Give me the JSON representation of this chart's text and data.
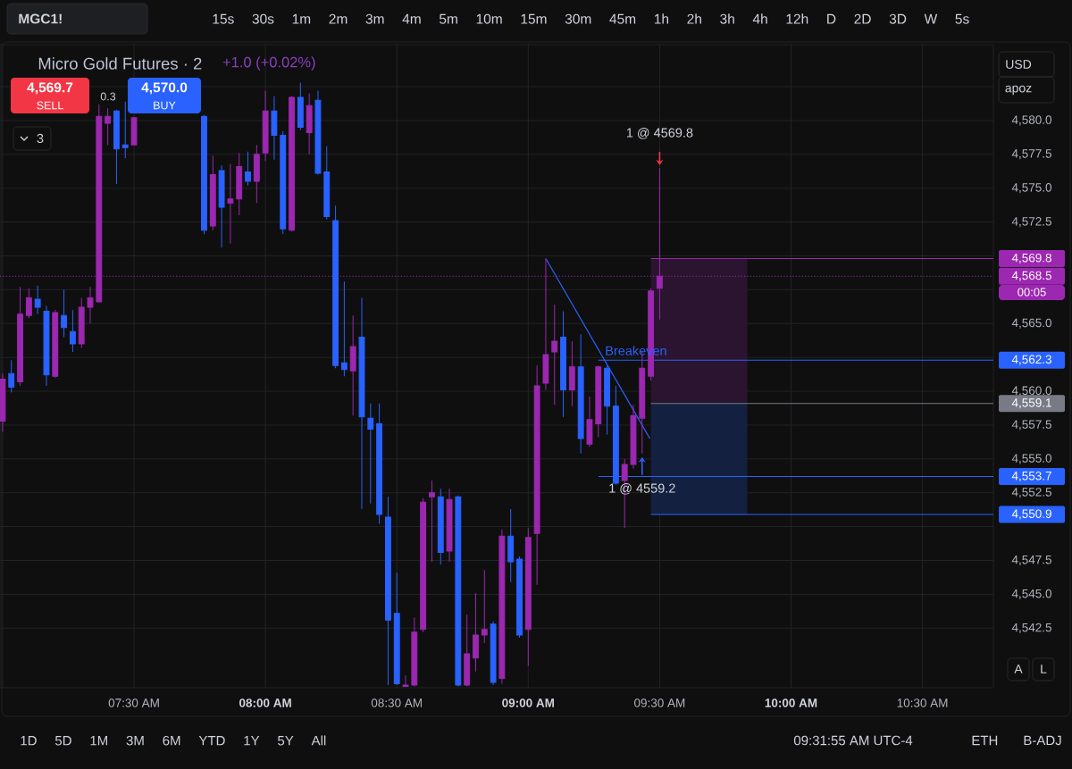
{
  "chart_data": {
    "type": "candlestick",
    "title": "Micro Gold Futures · 2",
    "subtitle": "+1.0 (+0.02%)",
    "x": [
      7,
      7.0333,
      7.0667,
      7.1,
      7.1333,
      7.1667,
      7.2,
      7.2333,
      7.2667,
      7.3,
      7.3333,
      7.3667,
      7.4,
      7.4333,
      7.4667,
      7.5,
      7.7667,
      7.8,
      7.8333,
      7.8667,
      7.9,
      7.9333,
      7.9667,
      8,
      8.0333,
      8.0667,
      8.1,
      8.1333,
      8.1667,
      8.2,
      8.2333,
      8.2667,
      8.3,
      8.3333,
      8.3667,
      8.4,
      8.4333,
      8.4667,
      8.5,
      8.5333,
      8.5667,
      8.6,
      8.6333,
      8.6667,
      8.7,
      8.7333,
      8.7667,
      8.8,
      8.8333,
      8.8667,
      8.9,
      8.9333,
      8.9667,
      9,
      9.0333,
      9.0667,
      9.1,
      9.1333,
      9.1667,
      9.2,
      9.2333,
      9.2667,
      9.3,
      9.3333,
      9.3667,
      9.4,
      9.4333,
      9.4667,
      9.5
    ],
    "ohlc": [
      [
        4557.8,
        4561.3,
        4557.0,
        4560.9
      ],
      [
        4561.3,
        4562.3,
        4559.9,
        4560.3
      ],
      [
        4560.7,
        4567.7,
        4560.4,
        4565.7
      ],
      [
        4565.6,
        4567.6,
        4565.4,
        4566.9
      ],
      [
        4566.8,
        4567.8,
        4565.7,
        4566.2
      ],
      [
        4565.9,
        4566.3,
        4560.4,
        4561.2
      ],
      [
        4561.1,
        4566.0,
        4561.0,
        4565.8
      ],
      [
        4565.6,
        4567.5,
        4564.0,
        4564.7
      ],
      [
        4564.4,
        4566.0,
        4562.9,
        4563.5
      ],
      [
        4563.5,
        4566.9,
        4563.2,
        4566.2
      ],
      [
        4566.2,
        4567.7,
        4565.0,
        4566.9
      ],
      [
        4566.6,
        4581.2,
        4566.6,
        4580.3
      ],
      [
        4579.8,
        4580.9,
        4578.2,
        4580.3
      ],
      [
        4580.7,
        4580.8,
        4575.3,
        4577.9
      ],
      [
        4578.2,
        4581.4,
        4577.2,
        4578.0
      ],
      [
        4578.2,
        4580.2,
        4578.2,
        4580.2
      ],
      [
        4580.3,
        4580.4,
        4571.6,
        4571.9
      ],
      [
        4572.2,
        4577.4,
        4571.9,
        4576.0
      ],
      [
        4576.3,
        4576.7,
        4570.6,
        4573.6
      ],
      [
        4573.9,
        4576.8,
        4570.9,
        4574.2
      ],
      [
        4574.2,
        4577.6,
        4573.0,
        4576.6
      ],
      [
        4576.2,
        4577.7,
        4575.2,
        4575.5
      ],
      [
        4575.5,
        4578.2,
        4573.9,
        4577.5
      ],
      [
        4577.6,
        4582.2,
        4577.0,
        4580.7
      ],
      [
        4580.7,
        4581.8,
        4577.1,
        4578.9
      ],
      [
        4578.9,
        4579.2,
        4571.6,
        4572.0
      ],
      [
        4571.9,
        4581.8,
        4571.8,
        4581.7
      ],
      [
        4581.7,
        4582.8,
        4579.3,
        4579.5
      ],
      [
        4579.1,
        4582.0,
        4577.5,
        4581.1
      ],
      [
        4581.5,
        4582.2,
        4576.0,
        4576.1
      ],
      [
        4576.2,
        4578.1,
        4572.7,
        4572.9
      ],
      [
        4572.6,
        4573.7,
        4561.7,
        4561.9
      ],
      [
        4562.1,
        4568.1,
        4561.1,
        4561.6
      ],
      [
        4561.5,
        4565.6,
        4558.2,
        4563.3
      ],
      [
        4564.0,
        4566.9,
        4551.3,
        4558.1
      ],
      [
        4558.0,
        4559.1,
        4551.7,
        4557.2
      ],
      [
        4557.6,
        4559.1,
        4550.2,
        4550.9
      ],
      [
        4550.7,
        4552.2,
        4538.3,
        4543.1
      ],
      [
        4543.6,
        4546.6,
        4538.3,
        4538.4
      ],
      [
        4538.2,
        4539.0,
        4538.2,
        4538.3
      ],
      [
        4538.3,
        4543.3,
        4538.2,
        4542.2
      ],
      [
        4542.4,
        4552.1,
        4542.2,
        4551.8
      ],
      [
        4552.2,
        4553.4,
        4547.4,
        4552.5
      ],
      [
        4552.2,
        4552.8,
        4547.2,
        4548.1
      ],
      [
        4548.2,
        4552.8,
        4547.4,
        4552.0
      ],
      [
        4552.2,
        4552.3,
        4538.2,
        4538.3
      ],
      [
        4538.3,
        4543.5,
        4538.2,
        4540.6
      ],
      [
        4540.3,
        4545.1,
        4539.3,
        4542.0
      ],
      [
        4542.0,
        4546.8,
        4541.4,
        4542.4
      ],
      [
        4542.8,
        4543.0,
        4538.3,
        4538.5
      ],
      [
        4538.8,
        4549.8,
        4538.4,
        4549.3
      ],
      [
        4549.3,
        4551.3,
        4545.9,
        4547.4
      ],
      [
        4547.6,
        4547.8,
        4541.8,
        4542.0
      ],
      [
        4542.4,
        4549.9,
        4539.7,
        4549.2
      ],
      [
        4549.5,
        4561.9,
        4545.7,
        4560.4
      ],
      [
        4560.6,
        4569.8,
        4560.1,
        4562.7
      ],
      [
        4562.9,
        4566.4,
        4559.0,
        4563.7
      ],
      [
        4564.0,
        4565.9,
        4558.1,
        4560.1
      ],
      [
        4560.1,
        4563.7,
        4558.9,
        4561.8
      ],
      [
        4561.8,
        4564.2,
        4555.4,
        4556.5
      ],
      [
        4556.1,
        4559.6,
        4555.9,
        4557.9
      ],
      [
        4557.6,
        4561.9,
        4556.6,
        4561.8
      ],
      [
        4561.7,
        4561.9,
        4556.8,
        4558.9
      ],
      [
        4558.9,
        4560.4,
        4553.1,
        4553.2
      ],
      [
        4553.4,
        4555.0,
        4549.9,
        4554.6
      ],
      [
        4554.6,
        4559.0,
        4554.3,
        4558.2
      ],
      [
        4558.0,
        4563.0,
        4555.4,
        4561.7
      ],
      [
        4561.1,
        4567.6,
        4560.8,
        4567.4
      ],
      [
        4567.6,
        4576.5,
        4565.3,
        4568.5
      ]
    ],
    "colors": [
      "#9c27b0",
      "#2962ff",
      "#9c27b0",
      "#9c27b0",
      "#2962ff",
      "#2962ff",
      "#9c27b0",
      "#2962ff",
      "#2962ff",
      "#9c27b0",
      "#9c27b0",
      "#9c27b0",
      "#9c27b0",
      "#2962ff",
      "#2962ff",
      "#9c27b0",
      "#2962ff",
      "#9c27b0",
      "#2962ff",
      "#9c27b0",
      "#9c27b0",
      "#2962ff",
      "#9c27b0",
      "#9c27b0",
      "#2962ff",
      "#2962ff",
      "#9c27b0",
      "#2962ff",
      "#9c27b0",
      "#2962ff",
      "#2962ff",
      "#2962ff",
      "#2962ff",
      "#9c27b0",
      "#2962ff",
      "#2962ff",
      "#2962ff",
      "#2962ff",
      "#2962ff",
      "#9c27b0",
      "#9c27b0",
      "#9c27b0",
      "#9c27b0",
      "#2962ff",
      "#9c27b0",
      "#2962ff",
      "#9c27b0",
      "#9c27b0",
      "#9c27b0",
      "#2962ff",
      "#9c27b0",
      "#2962ff",
      "#2962ff",
      "#9c27b0",
      "#9c27b0",
      "#9c27b0",
      "#9c27b0",
      "#2962ff",
      "#9c27b0",
      "#2962ff",
      "#9c27b0",
      "#9c27b0",
      "#2962ff",
      "#2962ff",
      "#9c27b0",
      "#9c27b0",
      "#9c27b0",
      "#9c27b0",
      "#9c27b0"
    ],
    "series": [
      {
        "type": "line",
        "x": [
          9.067,
          9.463
        ],
        "values": [
          4569.8,
          4556.5
        ],
        "color": "#2962ff"
      },
      {
        "type": "line",
        "x": [
          9.4667,
          9.8333
        ],
        "values": [
          null,
          null
        ],
        "lower": [
          4559.1,
          4559.1
        ],
        "upper": [
          4569.8,
          4569.8
        ],
        "color": "#9c27b0"
      },
      {
        "type": "line",
        "x": [
          9.4667,
          9.8333
        ],
        "values": [
          null,
          null
        ],
        "lower": [
          4550.9,
          4550.9
        ],
        "upper": [
          4559.1,
          4559.1
        ],
        "color": "#2962ff"
      }
    ],
    "xlim": [
      6.99,
      10.77
    ],
    "xticks": [
      {
        "value": 7,
        "label": null
      },
      {
        "value": 7.5,
        "label": "07:30 AM"
      },
      {
        "value": 8,
        "label": "08:00 AM"
      },
      {
        "value": 8.5,
        "label": "08:30 AM"
      },
      {
        "value": 9,
        "label": "09:00 AM"
      },
      {
        "value": 9.5,
        "label": "09:30 AM"
      },
      {
        "value": 10,
        "label": "10:00 AM"
      },
      {
        "value": 10.5,
        "label": "10:30 AM"
      }
    ],
    "ylim": [
      4538.1,
      4585.6
    ],
    "yticks": [
      {
        "value": 4542.5,
        "label": "4,542.5"
      },
      {
        "value": 4545,
        "label": "4,545.0"
      },
      {
        "value": 4547.5,
        "label": "4,547.5"
      },
      {
        "value": 4550,
        "label": null
      },
      {
        "value": 4552.5,
        "label": "4,552.5"
      },
      {
        "value": 4555,
        "label": "4,555.0"
      },
      {
        "value": 4557.5,
        "label": "4,557.5"
      },
      {
        "value": 4560,
        "label": "4,560.0"
      },
      {
        "value": 4562.5,
        "label": null
      },
      {
        "value": 4565,
        "label": "4,565.0"
      },
      {
        "value": 4567.5,
        "label": null
      },
      {
        "value": 4570,
        "label": null
      },
      {
        "value": 4572.5,
        "label": "4,572.5"
      },
      {
        "value": 4575,
        "label": "4,575.0"
      },
      {
        "value": 4577.5,
        "label": "4,577.5"
      },
      {
        "value": 4580,
        "label": "4,580.0"
      },
      {
        "value": 4582.5,
        "label": null
      }
    ],
    "grid": true,
    "ref_lines": [
      {
        "axis": "y",
        "value": 4569.8,
        "label": "4,569.8",
        "color": "#9c27b0",
        "line_style": "solid"
      },
      {
        "axis": "y",
        "value": 4568.5,
        "label": "4,568.5",
        "color": "#9c27b0",
        "line_style": "dotted"
      },
      {
        "axis": "y",
        "value": 4562.3,
        "label": "4,562.3",
        "color": "#2962ff",
        "line_style": "solid"
      },
      {
        "axis": "y",
        "value": 4559.1,
        "label": "4,559.1",
        "color": "#787b86",
        "line_style": "solid"
      },
      {
        "axis": "y",
        "value": 4553.7,
        "label": "4,553.7",
        "color": "#2962ff",
        "line_style": "solid"
      },
      {
        "axis": "y",
        "value": 4550.9,
        "label": "4,550.9",
        "color": "#2962ff",
        "line_style": "solid"
      }
    ],
    "annotations": [
      "MGC1!",
      "15s 30s 1m 2m 3m 4m 5m 10m 15m 30m 45m 1h 2h 3h 4h 12h D 2D 3D W 5s",
      "4,569.7",
      "SELL",
      "0.3",
      "4,570.0",
      "BUY",
      "3",
      "USD",
      "apoz",
      "A",
      "L",
      "1D 5D 1M 3M 6M YTD 1Y 5Y All",
      "09:31:55 AM UTC-4",
      "ETH",
      "B-ADJ",
      "00:05",
      {
        "text": "1 @ 4569.8",
        "x": 9.5,
        "y": 4576.5
      },
      {
        "text": "1 @ 4559.2",
        "x": 9.4333,
        "y": 4555.4
      },
      {
        "text": "Breakeven",
        "x": 9.41,
        "y": 4562.3
      }
    ]
  }
}
